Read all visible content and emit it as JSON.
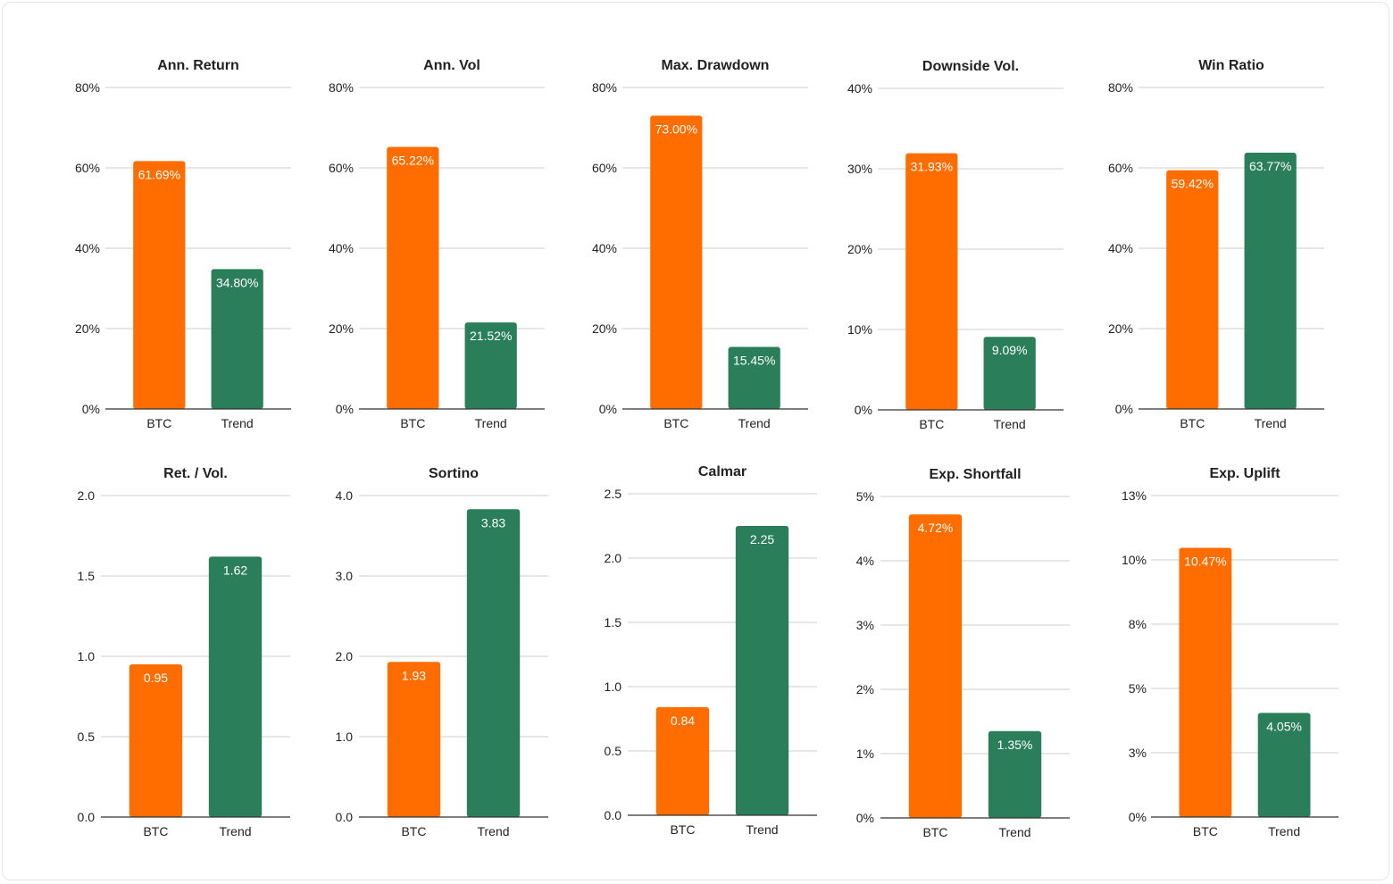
{
  "colors": {
    "btc": "#ff6d01",
    "trend": "#2a7f5a",
    "grid": "#cfcfcf",
    "axis": "#333333",
    "text": "#222222"
  },
  "chart_data": [
    {
      "type": "bar",
      "title": "Ann. Return",
      "categories": [
        "BTC",
        "Trend"
      ],
      "values": [
        61.69,
        34.8
      ],
      "labels": [
        "61.69%",
        "34.80%"
      ],
      "ylim": [
        0,
        80
      ],
      "yticks": [
        0,
        20,
        40,
        60,
        80
      ],
      "yticklabels": [
        "0%",
        "20%",
        "40%",
        "60%",
        "80%"
      ],
      "grid": true,
      "xlabel": "",
      "ylabel": ""
    },
    {
      "type": "bar",
      "title": "Ann. Vol",
      "categories": [
        "BTC",
        "Trend"
      ],
      "values": [
        65.22,
        21.52
      ],
      "labels": [
        "65.22%",
        "21.52%"
      ],
      "ylim": [
        0,
        80
      ],
      "yticks": [
        0,
        20,
        40,
        60,
        80
      ],
      "yticklabels": [
        "0%",
        "20%",
        "40%",
        "60%",
        "80%"
      ],
      "grid": true,
      "xlabel": "",
      "ylabel": ""
    },
    {
      "type": "bar",
      "title": "Max. Drawdown",
      "categories": [
        "BTC",
        "Trend"
      ],
      "values": [
        73.0,
        15.45
      ],
      "labels": [
        "73.00%",
        "15.45%"
      ],
      "ylim": [
        0,
        80
      ],
      "yticks": [
        0,
        20,
        40,
        60,
        80
      ],
      "yticklabels": [
        "0%",
        "20%",
        "40%",
        "60%",
        "80%"
      ],
      "grid": true,
      "xlabel": "",
      "ylabel": ""
    },
    {
      "type": "bar",
      "title": "Downside Vol.",
      "categories": [
        "BTC",
        "Trend"
      ],
      "values": [
        31.93,
        9.09
      ],
      "labels": [
        "31.93%",
        "9.09%"
      ],
      "ylim": [
        0,
        40
      ],
      "yticks": [
        0,
        10,
        20,
        30,
        40
      ],
      "yticklabels": [
        "0%",
        "10%",
        "20%",
        "30%",
        "40%"
      ],
      "grid": true,
      "xlabel": "",
      "ylabel": ""
    },
    {
      "type": "bar",
      "title": "Win Ratio",
      "categories": [
        "BTC",
        "Trend"
      ],
      "values": [
        59.42,
        63.77
      ],
      "labels": [
        "59.42%",
        "63.77%"
      ],
      "ylim": [
        0,
        80
      ],
      "yticks": [
        0,
        20,
        40,
        60,
        80
      ],
      "yticklabels": [
        "0%",
        "20%",
        "40%",
        "60%",
        "80%"
      ],
      "grid": true,
      "xlabel": "",
      "ylabel": ""
    },
    {
      "type": "bar",
      "title": "Ret. / Vol.",
      "categories": [
        "BTC",
        "Trend"
      ],
      "values": [
        0.95,
        1.62
      ],
      "labels": [
        "0.95",
        "1.62"
      ],
      "ylim": [
        0,
        2
      ],
      "yticks": [
        0,
        0.5,
        1,
        1.5,
        2
      ],
      "yticklabels": [
        "0.0",
        "0.5",
        "1.0",
        "1.5",
        "2.0"
      ],
      "grid": true,
      "xlabel": "",
      "ylabel": ""
    },
    {
      "type": "bar",
      "title": "Sortino",
      "categories": [
        "BTC",
        "Trend"
      ],
      "values": [
        1.93,
        3.83
      ],
      "labels": [
        "1.93",
        "3.83"
      ],
      "ylim": [
        0,
        4
      ],
      "yticks": [
        0,
        1,
        2,
        3,
        4
      ],
      "yticklabels": [
        "0.0",
        "1.0",
        "2.0",
        "3.0",
        "4.0"
      ],
      "grid": true,
      "xlabel": "",
      "ylabel": ""
    },
    {
      "type": "bar",
      "title": "Calmar",
      "categories": [
        "BTC",
        "Trend"
      ],
      "values": [
        0.84,
        2.25
      ],
      "labels": [
        "0.84",
        "2.25"
      ],
      "ylim": [
        0,
        2.5
      ],
      "yticks": [
        0,
        0.5,
        1,
        1.5,
        2,
        2.5
      ],
      "yticklabels": [
        "0.0",
        "0.5",
        "1.0",
        "1.5",
        "2.0",
        "2.5"
      ],
      "grid": true,
      "xlabel": "",
      "ylabel": ""
    },
    {
      "type": "bar",
      "title": "Exp. Shortfall",
      "categories": [
        "BTC",
        "Trend"
      ],
      "values": [
        4.72,
        1.35
      ],
      "labels": [
        "4.72%",
        "1.35%"
      ],
      "ylim": [
        0,
        5
      ],
      "yticks": [
        0,
        1,
        2,
        3,
        4,
        5
      ],
      "yticklabels": [
        "0%",
        "1%",
        "2%",
        "3%",
        "4%",
        "5%"
      ],
      "grid": true,
      "xlabel": "",
      "ylabel": ""
    },
    {
      "type": "bar",
      "title": "Exp. Uplift",
      "categories": [
        "BTC",
        "Trend"
      ],
      "values": [
        10.47,
        4.05
      ],
      "labels": [
        "10.47%",
        "4.05%"
      ],
      "ylim": [
        0,
        12.5
      ],
      "yticks": [
        0,
        2.5,
        5,
        7.5,
        10,
        12.5
      ],
      "yticklabels": [
        "0%",
        "3%",
        "5%",
        "8%",
        "10%",
        "13%"
      ],
      "grid": true,
      "xlabel": "",
      "ylabel": ""
    }
  ]
}
